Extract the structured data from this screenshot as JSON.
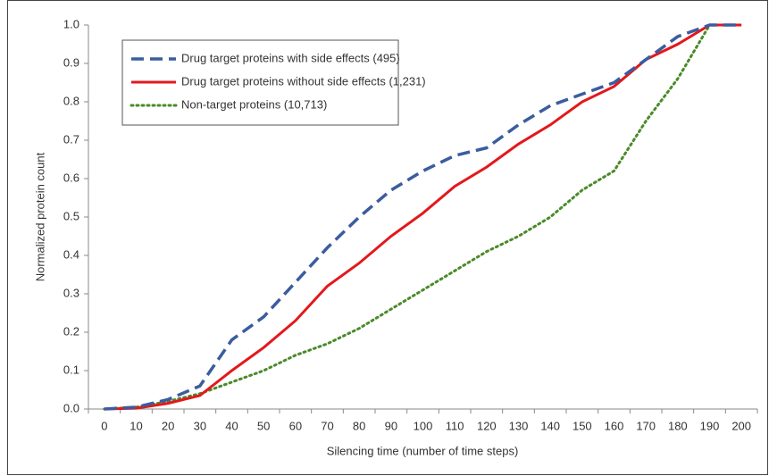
{
  "chart_data": {
    "type": "line",
    "x_label": "Silencing time (number of time steps)",
    "y_label": "Normalized protein count",
    "categories": [
      "0",
      "10",
      "20",
      "30",
      "40",
      "50",
      "60",
      "70",
      "80",
      "90",
      "100",
      "110",
      "120",
      "130",
      "140",
      "150",
      "160",
      "170",
      "180",
      "190",
      "200"
    ],
    "series": [
      {
        "name": "Drug target proteins with side effects (495)",
        "color": "#3b5c9e",
        "dash": "dashed",
        "values": [
          0,
          0.005,
          0.025,
          0.06,
          0.18,
          0.24,
          0.33,
          0.42,
          0.5,
          0.57,
          0.62,
          0.66,
          0.68,
          0.74,
          0.79,
          0.82,
          0.85,
          0.91,
          0.97,
          1.0,
          1.0
        ]
      },
      {
        "name": "Drug target proteins without side effects (1,231)",
        "color": "#e3181c",
        "dash": "solid",
        "values": [
          0,
          0.002,
          0.015,
          0.035,
          0.1,
          0.16,
          0.23,
          0.32,
          0.38,
          0.45,
          0.51,
          0.58,
          0.63,
          0.69,
          0.74,
          0.8,
          0.84,
          0.91,
          0.95,
          1.0,
          1.0
        ]
      },
      {
        "name": "Non-target proteins (10,713)",
        "color": "#4a8a2a",
        "dash": "dotted",
        "values": [
          0,
          0.005,
          0.02,
          0.04,
          0.07,
          0.1,
          0.14,
          0.17,
          0.21,
          0.26,
          0.31,
          0.36,
          0.41,
          0.45,
          0.5,
          0.57,
          0.62,
          0.75,
          0.86,
          1.0,
          1.0
        ]
      }
    ],
    "ylim": [
      0,
      1
    ],
    "yticks": [
      {
        "value": 0,
        "label": "0.0"
      },
      {
        "value": 0.1,
        "label": "0.1"
      },
      {
        "value": 0.2,
        "label": "0.2"
      },
      {
        "value": 0.3,
        "label": "0.3"
      },
      {
        "value": 0.4,
        "label": "0.4"
      },
      {
        "value": 0.5,
        "label": "0.5"
      },
      {
        "value": 0.6,
        "label": "0.6"
      },
      {
        "value": 0.7,
        "label": "0.7"
      },
      {
        "value": 0.8,
        "label": "0.8"
      },
      {
        "value": 0.9,
        "label": "0.9"
      },
      {
        "value": 1,
        "label": "1.0"
      }
    ],
    "grid": false,
    "legend": "upper-left"
  }
}
